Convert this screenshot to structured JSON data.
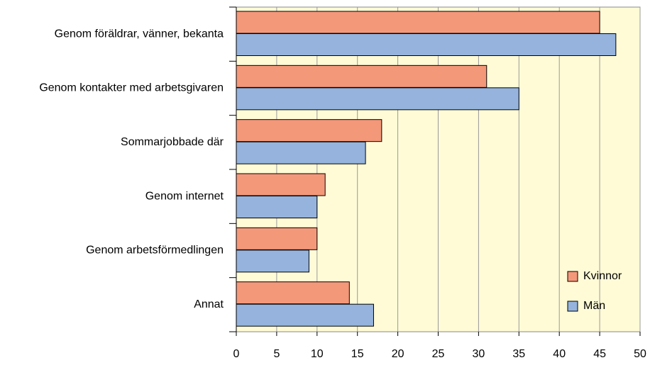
{
  "chart_data": {
    "type": "hbar",
    "categories": [
      "Genom föräldrar, vänner, bekanta",
      "Genom kontakter med arbetsgivaren",
      "Sommarjobbade där",
      "Genom internet",
      "Genom arbetsförmedlingen",
      "Annat"
    ],
    "series": [
      {
        "name": "Kvinnor",
        "color": "#f4987a",
        "values": [
          45,
          31,
          18,
          11,
          10,
          14
        ]
      },
      {
        "name": "Män",
        "color": "#95b3dc",
        "values": [
          47,
          35,
          16,
          10,
          9,
          17
        ]
      }
    ],
    "xlim": [
      0,
      50
    ],
    "xticks": [
      0,
      5,
      10,
      15,
      20,
      25,
      30,
      35,
      40,
      45,
      50
    ],
    "grid": true,
    "legend": "lower right",
    "background": "#fffbd7"
  }
}
